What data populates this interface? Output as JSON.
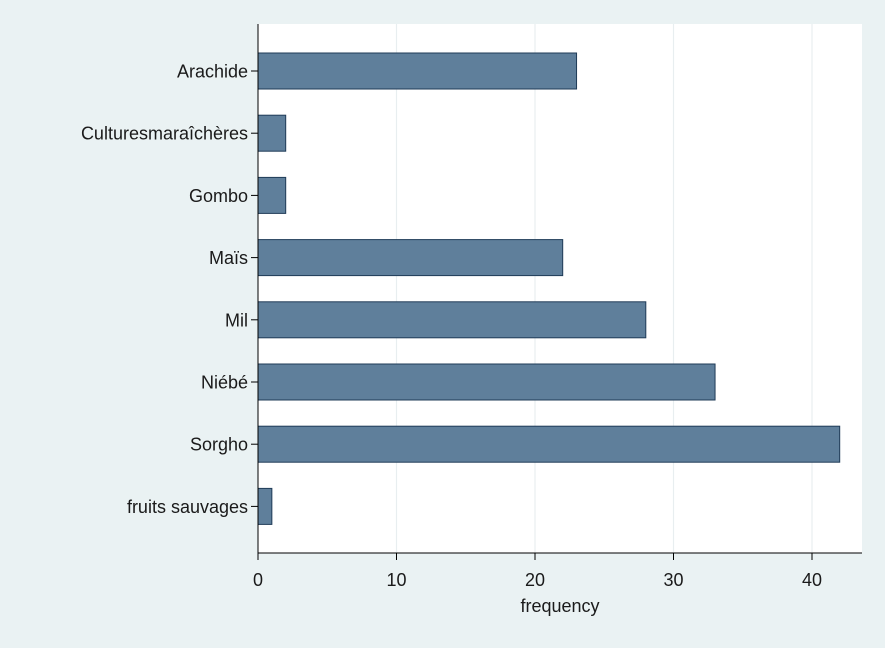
{
  "chart_data": {
    "type": "bar",
    "orientation": "horizontal",
    "categories": [
      "Arachide",
      "Culturesmaraîchères",
      "Gombo",
      "Maïs",
      "Mil",
      "Niébé",
      "Sorgho",
      "fruits sauvages"
    ],
    "values": [
      23,
      2,
      2,
      22,
      28,
      33,
      42,
      1
    ],
    "xlabel": "frequency",
    "ylabel": "",
    "xlim": [
      0,
      43.6
    ],
    "xticks": [
      0,
      10,
      20,
      30,
      40
    ],
    "grid": true,
    "colors": {
      "bar_fill": "#5f7f9b",
      "bar_stroke": "#1f3b57",
      "plot_bg": "#ffffff",
      "outer_bg": "#eaf2f3",
      "grid": "#e8eef0",
      "axis": "#000000"
    }
  }
}
